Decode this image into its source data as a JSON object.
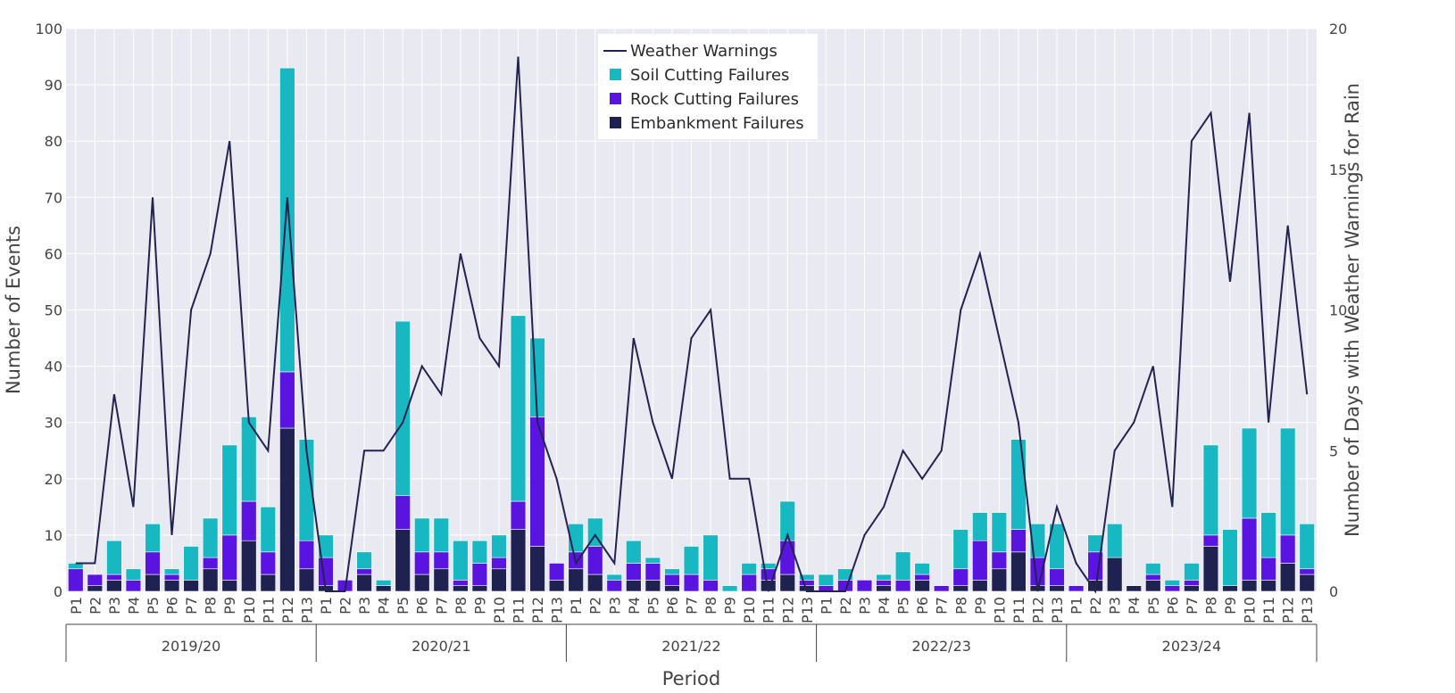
{
  "chart_data": {
    "type": "bar",
    "barmode": "stack",
    "xlabel": "Period",
    "ylabel": "Number of Events",
    "y2label": "Number of Days with Weather Warnings for Rain",
    "ylim": [
      0,
      100
    ],
    "y2lim": [
      0,
      20
    ],
    "yticks": [
      0,
      10,
      20,
      30,
      40,
      50,
      60,
      70,
      80,
      90,
      100
    ],
    "y2ticks": [
      0,
      5,
      10,
      15,
      20
    ],
    "grid": true,
    "legend_position": "top-center",
    "groups": [
      {
        "label": "2019/20",
        "periods": [
          "P1",
          "P2",
          "P3",
          "P4",
          "P5",
          "P6",
          "P7",
          "P8",
          "P9",
          "P10",
          "P11",
          "P12",
          "P13"
        ]
      },
      {
        "label": "2020/21",
        "periods": [
          "P1",
          "P2",
          "P3",
          "P4",
          "P5",
          "P6",
          "P7",
          "P8",
          "P9",
          "P10",
          "P11",
          "P12",
          "P13"
        ]
      },
      {
        "label": "2021/22",
        "periods": [
          "P1",
          "P2",
          "P3",
          "P4",
          "P5",
          "P6",
          "P7",
          "P8",
          "P9",
          "P10",
          "P11",
          "P12",
          "P13"
        ]
      },
      {
        "label": "2022/23",
        "periods": [
          "P1",
          "P2",
          "P3",
          "P4",
          "P5",
          "P6",
          "P7",
          "P8",
          "P9",
          "P10",
          "P11",
          "P12",
          "P13"
        ]
      },
      {
        "label": "2023/24",
        "periods": [
          "P1",
          "P2",
          "P3",
          "P4",
          "P5",
          "P6",
          "P7",
          "P8",
          "P9",
          "P10",
          "P11",
          "P12",
          "P13"
        ]
      }
    ],
    "legend": {
      "weather": "Weather Warnings",
      "soil": "Soil Cutting Failures",
      "rock": "Rock Cutting Failures",
      "embankment": "Embankment Failures"
    },
    "colors": {
      "embankment": "#1f2251",
      "rock": "#5a14e0",
      "soil": "#17b8c2",
      "line": "#24224f",
      "plot_bg": "#e9e9f2",
      "grid": "#ffffff"
    },
    "series": [
      {
        "name": "Embankment Failures",
        "key": "embankment",
        "axis": "y",
        "values": [
          0,
          1,
          2,
          0,
          3,
          2,
          2,
          4,
          2,
          9,
          3,
          29,
          4,
          1,
          0,
          3,
          1,
          11,
          3,
          4,
          1,
          1,
          4,
          11,
          8,
          2,
          4,
          3,
          0,
          2,
          2,
          1,
          0,
          0,
          0,
          0,
          2,
          3,
          1,
          0,
          0,
          0,
          1,
          0,
          2,
          0,
          1,
          2,
          4,
          7,
          1,
          1,
          0,
          2,
          6,
          1,
          2,
          0,
          1,
          8,
          1,
          2,
          2,
          5,
          3
        ]
      },
      {
        "name": "Rock Cutting Failures",
        "key": "rock",
        "axis": "y",
        "values": [
          4,
          2,
          1,
          2,
          4,
          1,
          0,
          2,
          8,
          7,
          4,
          10,
          5,
          5,
          2,
          1,
          0,
          6,
          4,
          3,
          1,
          4,
          2,
          5,
          23,
          3,
          3,
          5,
          2,
          3,
          3,
          2,
          3,
          2,
          0,
          3,
          2,
          6,
          1,
          1,
          2,
          2,
          1,
          2,
          1,
          1,
          3,
          7,
          3,
          4,
          5,
          3,
          1,
          5,
          0,
          0,
          1,
          1,
          1,
          2,
          0,
          11,
          4,
          5,
          1
        ]
      },
      {
        "name": "Soil Cutting Failures",
        "key": "soil",
        "axis": "y",
        "values": [
          1,
          0,
          6,
          2,
          5,
          1,
          6,
          7,
          16,
          15,
          8,
          54,
          18,
          4,
          0,
          3,
          1,
          31,
          6,
          6,
          7,
          4,
          4,
          33,
          14,
          0,
          5,
          5,
          1,
          4,
          1,
          1,
          5,
          8,
          1,
          2,
          1,
          7,
          1,
          2,
          2,
          0,
          1,
          5,
          2,
          0,
          7,
          5,
          7,
          16,
          6,
          8,
          0,
          3,
          6,
          0,
          2,
          1,
          3,
          16,
          10,
          16,
          8,
          19,
          8
        ]
      },
      {
        "name": "Weather Warnings",
        "key": "line",
        "axis": "y2",
        "type": "line",
        "values": [
          1,
          1,
          7,
          3,
          14,
          2,
          10,
          12,
          16,
          6,
          5,
          14,
          5,
          0,
          0,
          5,
          5,
          6,
          8,
          7,
          12,
          9,
          8,
          19,
          6,
          4,
          1,
          2,
          1,
          9,
          6,
          4,
          9,
          10,
          4,
          4,
          0,
          2,
          0,
          0,
          0,
          2,
          3,
          5,
          4,
          5,
          10,
          12,
          9,
          6,
          0,
          3,
          1,
          0,
          5,
          6,
          8,
          3,
          16,
          17,
          11,
          17,
          6,
          13,
          7
        ]
      }
    ]
  }
}
